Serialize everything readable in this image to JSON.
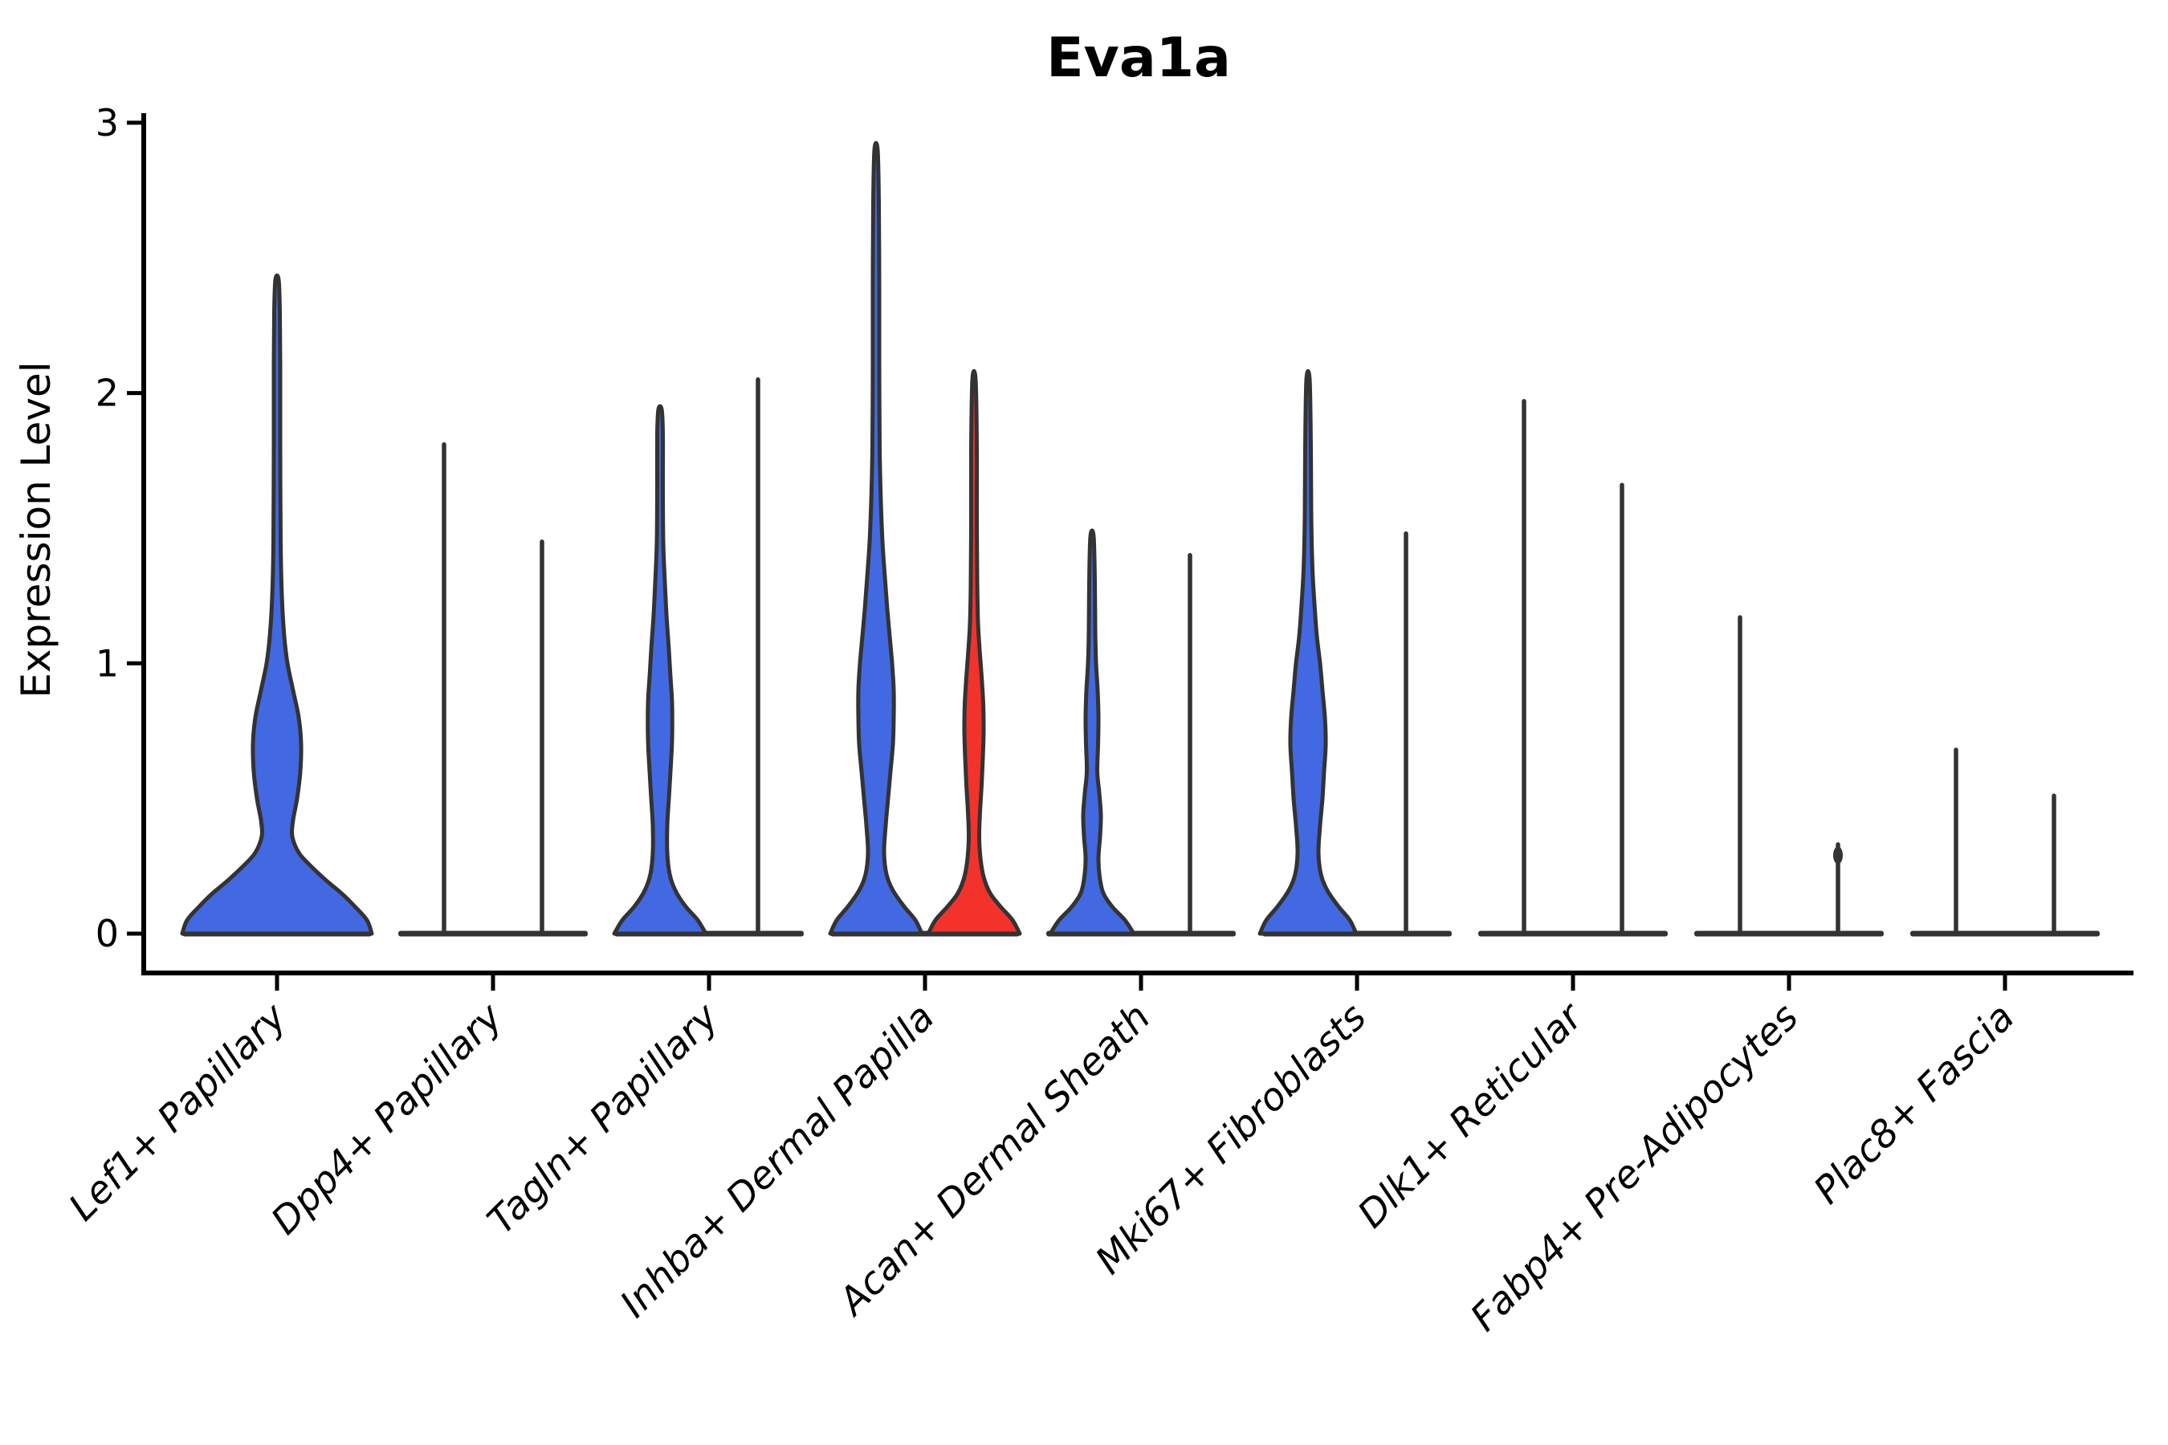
{
  "chart_data": {
    "type": "violin",
    "title": "Eva1a",
    "ylabel": "Expression Level",
    "xlabel": "",
    "ylim": [
      0,
      3
    ],
    "yticks": [
      0,
      1,
      2,
      3
    ],
    "legend": "none",
    "grid": false,
    "categories": [
      "Lef1+ Papillary",
      "Dpp4+ Papillary",
      "Tagln+ Papillary",
      "Inhba+ Dermal Papilla",
      "Acan+ Dermal Sheath",
      "Mki67+ Fibroblasts",
      "Dlk1+ Reticular",
      "Fabp4+ Pre-Adipocytes",
      "Plac8+ Fascia"
    ],
    "violins": [
      {
        "category_index": 0,
        "category": "Lef1+ Papillary",
        "side": "center",
        "kind": "shape",
        "color": "blue",
        "max_expression": 2.42,
        "profile": [
          [
            0,
            118
          ],
          [
            0.05,
            112
          ],
          [
            0.1,
            97
          ],
          [
            0.15,
            80
          ],
          [
            0.2,
            60
          ],
          [
            0.25,
            42
          ],
          [
            0.3,
            27
          ],
          [
            0.36,
            19
          ],
          [
            0.42,
            20
          ],
          [
            0.5,
            25
          ],
          [
            0.6,
            29
          ],
          [
            0.7,
            30
          ],
          [
            0.8,
            27
          ],
          [
            0.9,
            20
          ],
          [
            1.0,
            13
          ],
          [
            1.1,
            9
          ],
          [
            1.25,
            6
          ],
          [
            1.45,
            4.5
          ],
          [
            1.8,
            4
          ],
          [
            2.1,
            4
          ],
          [
            2.3,
            3.5
          ],
          [
            2.42,
            2
          ]
        ]
      },
      {
        "category_index": 1,
        "category": "Dpp4+ Papillary",
        "side": "left",
        "kind": "line",
        "color": "outline",
        "max_expression": 1.81
      },
      {
        "category_index": 1,
        "category": "Dpp4+ Papillary",
        "side": "right",
        "kind": "line",
        "color": "outline",
        "max_expression": 1.45
      },
      {
        "category_index": 2,
        "category": "Tagln+ Papillary",
        "side": "left",
        "kind": "shape",
        "color": "blue",
        "max_expression": 1.94,
        "profile": [
          [
            0,
            57
          ],
          [
            0.05,
            47
          ],
          [
            0.1,
            32
          ],
          [
            0.16,
            19
          ],
          [
            0.22,
            12
          ],
          [
            0.3,
            9
          ],
          [
            0.4,
            9
          ],
          [
            0.5,
            11
          ],
          [
            0.6,
            13
          ],
          [
            0.72,
            15
          ],
          [
            0.85,
            15
          ],
          [
            0.95,
            13
          ],
          [
            1.05,
            11
          ],
          [
            1.18,
            8
          ],
          [
            1.3,
            6
          ],
          [
            1.45,
            4
          ],
          [
            1.65,
            3.5
          ],
          [
            1.85,
            3.5
          ],
          [
            1.94,
            2
          ]
        ]
      },
      {
        "category_index": 2,
        "category": "Tagln+ Papillary",
        "side": "right",
        "kind": "line",
        "color": "outline",
        "max_expression": 2.05
      },
      {
        "category_index": 3,
        "category": "Inhba+ Dermal Papilla",
        "side": "left",
        "kind": "shape",
        "color": "blue",
        "max_expression": 2.9,
        "profile": [
          [
            0,
            57
          ],
          [
            0.05,
            49
          ],
          [
            0.1,
            35
          ],
          [
            0.16,
            21
          ],
          [
            0.22,
            13
          ],
          [
            0.3,
            10
          ],
          [
            0.4,
            12
          ],
          [
            0.5,
            15
          ],
          [
            0.6,
            18
          ],
          [
            0.7,
            21
          ],
          [
            0.8,
            22
          ],
          [
            0.9,
            22
          ],
          [
            1.0,
            20
          ],
          [
            1.1,
            17
          ],
          [
            1.2,
            14
          ],
          [
            1.32,
            11
          ],
          [
            1.45,
            8
          ],
          [
            1.6,
            6
          ],
          [
            1.8,
            4.5
          ],
          [
            2.1,
            4
          ],
          [
            2.4,
            4
          ],
          [
            2.7,
            3.5
          ],
          [
            2.9,
            2
          ]
        ]
      },
      {
        "category_index": 3,
        "category": "Inhba+ Dermal Papilla",
        "side": "right",
        "kind": "shape",
        "color": "red",
        "max_expression": 2.05,
        "profile": [
          [
            0,
            57
          ],
          [
            0.05,
            48
          ],
          [
            0.1,
            33
          ],
          [
            0.15,
            20
          ],
          [
            0.21,
            12
          ],
          [
            0.28,
            8
          ],
          [
            0.36,
            6.5
          ],
          [
            0.45,
            7.5
          ],
          [
            0.55,
            9.5
          ],
          [
            0.65,
            11
          ],
          [
            0.75,
            12
          ],
          [
            0.85,
            11.5
          ],
          [
            0.95,
            9.5
          ],
          [
            1.05,
            7
          ],
          [
            1.15,
            5
          ],
          [
            1.3,
            4
          ],
          [
            1.55,
            3.5
          ],
          [
            1.8,
            3.5
          ],
          [
            2.05,
            2
          ]
        ]
      },
      {
        "category_index": 4,
        "category": "Acan+ Dermal Sheath",
        "side": "left",
        "kind": "shape",
        "color": "blue",
        "max_expression": 1.47,
        "profile": [
          [
            0,
            52
          ],
          [
            0.05,
            41
          ],
          [
            0.1,
            25
          ],
          [
            0.15,
            14
          ],
          [
            0.21,
            9.5
          ],
          [
            0.28,
            8
          ],
          [
            0.36,
            10
          ],
          [
            0.44,
            11
          ],
          [
            0.52,
            9
          ],
          [
            0.6,
            6.5
          ],
          [
            0.7,
            7.5
          ],
          [
            0.8,
            8
          ],
          [
            0.9,
            7
          ],
          [
            1.0,
            5
          ],
          [
            1.12,
            4
          ],
          [
            1.3,
            3.5
          ],
          [
            1.47,
            2
          ]
        ]
      },
      {
        "category_index": 4,
        "category": "Acan+ Dermal Sheath",
        "side": "right",
        "kind": "line",
        "color": "outline",
        "max_expression": 1.4
      },
      {
        "category_index": 5,
        "category": "Mki67+ Fibroblasts",
        "side": "left",
        "kind": "shape",
        "color": "blue",
        "max_expression": 2.05,
        "profile": [
          [
            0,
            60
          ],
          [
            0.05,
            52
          ],
          [
            0.1,
            38
          ],
          [
            0.16,
            24
          ],
          [
            0.22,
            16
          ],
          [
            0.3,
            13
          ],
          [
            0.4,
            15
          ],
          [
            0.5,
            18
          ],
          [
            0.6,
            20
          ],
          [
            0.7,
            22
          ],
          [
            0.8,
            21
          ],
          [
            0.9,
            18
          ],
          [
            1.0,
            15
          ],
          [
            1.1,
            11
          ],
          [
            1.22,
            8
          ],
          [
            1.35,
            5.5
          ],
          [
            1.55,
            4
          ],
          [
            1.8,
            3.5
          ],
          [
            2.05,
            2
          ]
        ]
      },
      {
        "category_index": 5,
        "category": "Mki67+ Fibroblasts",
        "side": "right",
        "kind": "line",
        "color": "outline",
        "max_expression": 1.48
      },
      {
        "category_index": 6,
        "category": "Dlk1+ Reticular",
        "side": "left",
        "kind": "line",
        "color": "outline",
        "max_expression": 1.97
      },
      {
        "category_index": 6,
        "category": "Dlk1+ Reticular",
        "side": "right",
        "kind": "line",
        "color": "outline",
        "max_expression": 1.66
      },
      {
        "category_index": 7,
        "category": "Fabp4+ Pre-Adipocytes",
        "side": "left",
        "kind": "line",
        "color": "outline",
        "max_expression": 1.17
      },
      {
        "category_index": 7,
        "category": "Fabp4+ Pre-Adipocytes",
        "side": "right",
        "kind": "line",
        "color": "outline",
        "max_expression": 0.33,
        "blob": {
          "value": 0.29
        }
      },
      {
        "category_index": 8,
        "category": "Plac8+ Fascia",
        "side": "left",
        "kind": "line",
        "color": "outline",
        "max_expression": 0.68
      },
      {
        "category_index": 8,
        "category": "Plac8+ Fascia",
        "side": "right",
        "kind": "line",
        "color": "outline",
        "max_expression": 0.51
      }
    ]
  },
  "colors": {
    "blue": "#4269E2",
    "red": "#F3322C",
    "outline": "#333333",
    "axis": "#000000",
    "background": "#ffffff"
  }
}
